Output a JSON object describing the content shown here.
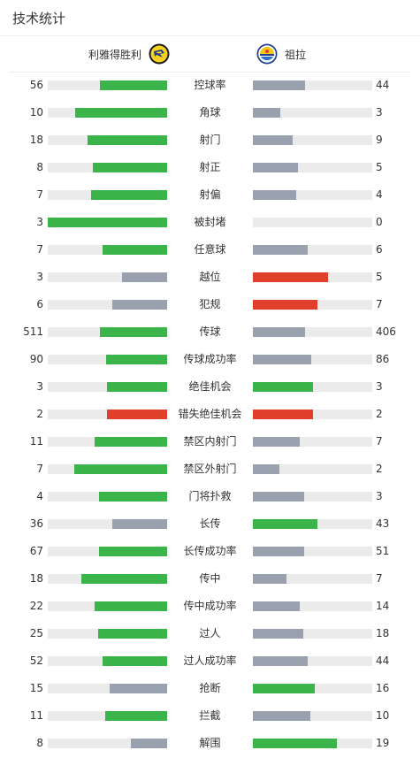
{
  "header": {
    "title": "技术统计"
  },
  "teams": {
    "home": "利雅得胜利",
    "away": "祖拉"
  },
  "colors": {
    "green": "#3bb54a",
    "gray": "#9aa1ae",
    "red": "#e0402b",
    "track": "#ebebeb"
  },
  "stats": [
    {
      "label": "控球率",
      "home": "56",
      "away": "44",
      "home_ratio": 0.56,
      "away_ratio": 0.44,
      "home_color": "green",
      "away_color": "gray"
    },
    {
      "label": "角球",
      "home": "10",
      "away": "3",
      "home_ratio": 0.77,
      "away_ratio": 0.23,
      "home_color": "green",
      "away_color": "gray"
    },
    {
      "label": "射门",
      "home": "18",
      "away": "9",
      "home_ratio": 0.67,
      "away_ratio": 0.33,
      "home_color": "green",
      "away_color": "gray"
    },
    {
      "label": "射正",
      "home": "8",
      "away": "5",
      "home_ratio": 0.62,
      "away_ratio": 0.38,
      "home_color": "green",
      "away_color": "gray"
    },
    {
      "label": "射偏",
      "home": "7",
      "away": "4",
      "home_ratio": 0.64,
      "away_ratio": 0.36,
      "home_color": "green",
      "away_color": "gray"
    },
    {
      "label": "被封堵",
      "home": "3",
      "away": "0",
      "home_ratio": 1.0,
      "away_ratio": 0.0,
      "home_color": "green",
      "away_color": "gray"
    },
    {
      "label": "任意球",
      "home": "7",
      "away": "6",
      "home_ratio": 0.54,
      "away_ratio": 0.46,
      "home_color": "green",
      "away_color": "gray"
    },
    {
      "label": "越位",
      "home": "3",
      "away": "5",
      "home_ratio": 0.38,
      "away_ratio": 0.63,
      "home_color": "gray",
      "away_color": "red"
    },
    {
      "label": "犯规",
      "home": "6",
      "away": "7",
      "home_ratio": 0.46,
      "away_ratio": 0.54,
      "home_color": "gray",
      "away_color": "red"
    },
    {
      "label": "传球",
      "home": "511",
      "away": "406",
      "home_ratio": 0.56,
      "away_ratio": 0.44,
      "home_color": "green",
      "away_color": "gray"
    },
    {
      "label": "传球成功率",
      "home": "90",
      "away": "86",
      "home_ratio": 0.51,
      "away_ratio": 0.49,
      "home_color": "green",
      "away_color": "gray"
    },
    {
      "label": "绝佳机会",
      "home": "3",
      "away": "3",
      "home_ratio": 0.5,
      "away_ratio": 0.5,
      "home_color": "green",
      "away_color": "green"
    },
    {
      "label": "错失绝佳机会",
      "home": "2",
      "away": "2",
      "home_ratio": 0.5,
      "away_ratio": 0.5,
      "home_color": "red",
      "away_color": "red"
    },
    {
      "label": "禁区内射门",
      "home": "11",
      "away": "7",
      "home_ratio": 0.61,
      "away_ratio": 0.39,
      "home_color": "green",
      "away_color": "gray"
    },
    {
      "label": "禁区外射门",
      "home": "7",
      "away": "2",
      "home_ratio": 0.78,
      "away_ratio": 0.22,
      "home_color": "green",
      "away_color": "gray"
    },
    {
      "label": "门将扑救",
      "home": "4",
      "away": "3",
      "home_ratio": 0.57,
      "away_ratio": 0.43,
      "home_color": "green",
      "away_color": "gray"
    },
    {
      "label": "长传",
      "home": "36",
      "away": "43",
      "home_ratio": 0.46,
      "away_ratio": 0.54,
      "home_color": "gray",
      "away_color": "green"
    },
    {
      "label": "长传成功率",
      "home": "67",
      "away": "51",
      "home_ratio": 0.57,
      "away_ratio": 0.43,
      "home_color": "green",
      "away_color": "gray"
    },
    {
      "label": "传中",
      "home": "18",
      "away": "7",
      "home_ratio": 0.72,
      "away_ratio": 0.28,
      "home_color": "green",
      "away_color": "gray"
    },
    {
      "label": "传中成功率",
      "home": "22",
      "away": "14",
      "home_ratio": 0.61,
      "away_ratio": 0.39,
      "home_color": "green",
      "away_color": "gray"
    },
    {
      "label": "过人",
      "home": "25",
      "away": "18",
      "home_ratio": 0.58,
      "away_ratio": 0.42,
      "home_color": "green",
      "away_color": "gray"
    },
    {
      "label": "过人成功率",
      "home": "52",
      "away": "44",
      "home_ratio": 0.54,
      "away_ratio": 0.46,
      "home_color": "green",
      "away_color": "gray"
    },
    {
      "label": "抢断",
      "home": "15",
      "away": "16",
      "home_ratio": 0.48,
      "away_ratio": 0.52,
      "home_color": "gray",
      "away_color": "green"
    },
    {
      "label": "拦截",
      "home": "11",
      "away": "10",
      "home_ratio": 0.52,
      "away_ratio": 0.48,
      "home_color": "green",
      "away_color": "gray"
    },
    {
      "label": "解围",
      "home": "8",
      "away": "19",
      "home_ratio": 0.3,
      "away_ratio": 0.7,
      "home_color": "gray",
      "away_color": "green"
    }
  ]
}
